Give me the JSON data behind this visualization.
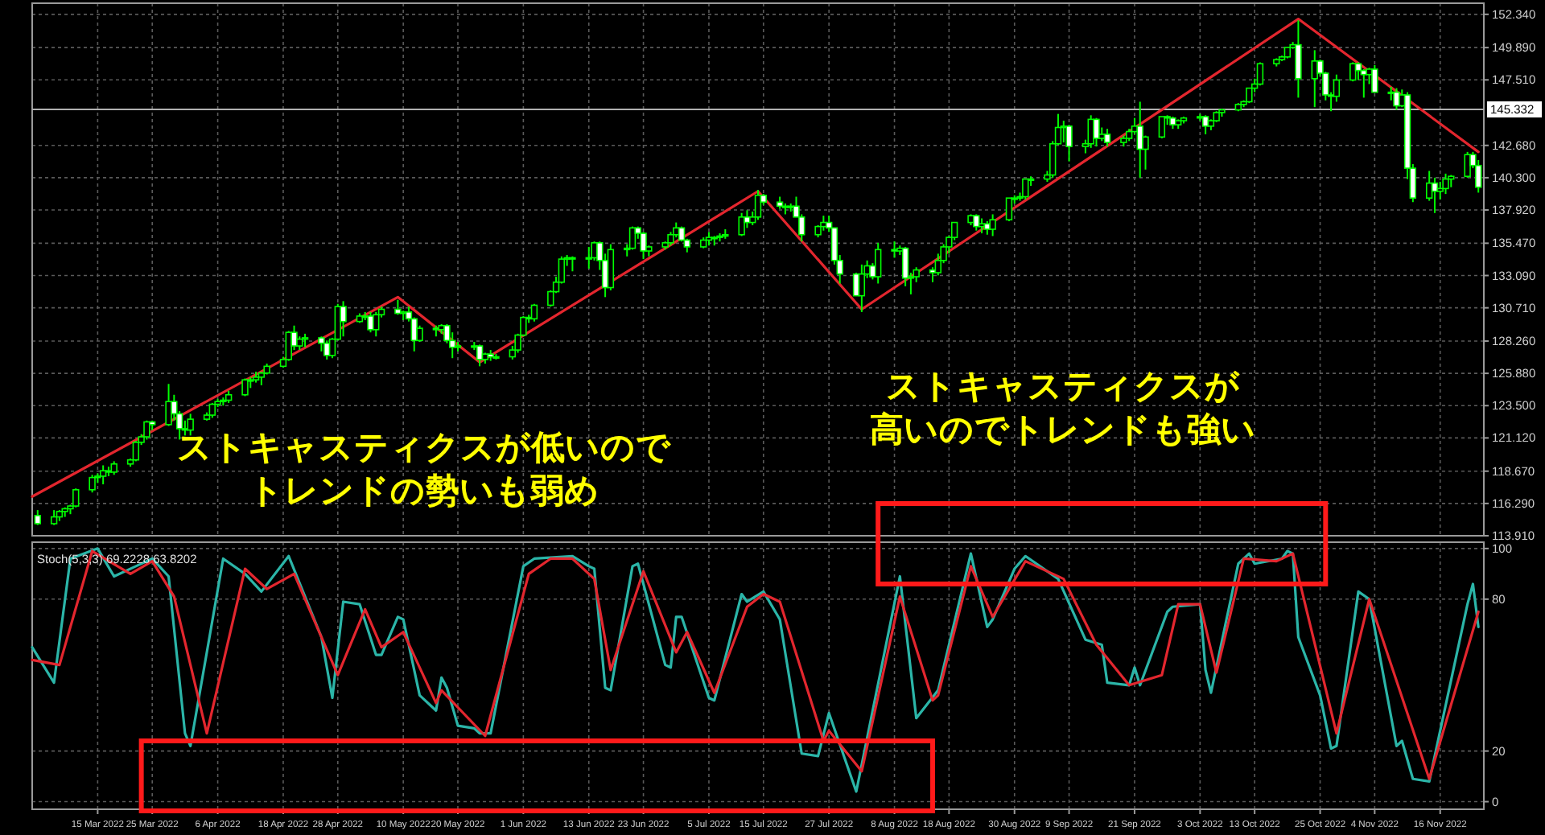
{
  "chart_data": [
    {
      "type": "candlestick",
      "color": "#00ff00",
      "grid": true,
      "tick_labels": "y",
      "xlim": [
        "2022-03-03",
        "2022-11-24"
      ],
      "ylim": [
        113.91,
        153.16
      ],
      "yticks": [
        {
          "value": 113.91,
          "label": "113.910"
        },
        {
          "value": 116.29,
          "label": "116.290"
        },
        {
          "value": 118.67,
          "label": "118.670"
        },
        {
          "value": 121.12,
          "label": "121.120"
        },
        {
          "value": 123.5,
          "label": "123.500"
        },
        {
          "value": 125.88,
          "label": "125.880"
        },
        {
          "value": 128.26,
          "label": "128.260"
        },
        {
          "value": 130.71,
          "label": "130.710"
        },
        {
          "value": 133.09,
          "label": "133.090"
        },
        {
          "value": 135.47,
          "label": "135.470"
        },
        {
          "value": 137.92,
          "label": "137.920"
        },
        {
          "value": 140.3,
          "label": "140.300"
        },
        {
          "value": 142.68,
          "label": "142.680"
        },
        {
          "value": 147.51,
          "label": "147.510"
        },
        {
          "value": 149.89,
          "label": "149.890"
        },
        {
          "value": 152.34,
          "label": "152.340"
        }
      ],
      "ref_lines": [
        {
          "axis": "y",
          "value": 145.332,
          "label": "145.332",
          "color": "#b0b0b0"
        }
      ],
      "annotations": [
        "ストキャスティクスが低いのでトレンドの勢いも弱め",
        "ストキャスティクスが高いのでトレンドも強い"
      ],
      "x": [
        "2022-03-04",
        "2022-03-07",
        "2022-03-08",
        "2022-03-09",
        "2022-03-10",
        "2022-03-11",
        "2022-03-14",
        "2022-03-15",
        "2022-03-16",
        "2022-03-17",
        "2022-03-18",
        "2022-03-21",
        "2022-03-22",
        "2022-03-23",
        "2022-03-24",
        "2022-03-25",
        "2022-03-28",
        "2022-03-29",
        "2022-03-30",
        "2022-03-31",
        "2022-04-01",
        "2022-04-04",
        "2022-04-05",
        "2022-04-06",
        "2022-04-07",
        "2022-04-08",
        "2022-04-11",
        "2022-04-12",
        "2022-04-13",
        "2022-04-14",
        "2022-04-15",
        "2022-04-18",
        "2022-04-19",
        "2022-04-20",
        "2022-04-21",
        "2022-04-22",
        "2022-04-25",
        "2022-04-26",
        "2022-04-27",
        "2022-04-28",
        "2022-04-29",
        "2022-05-02",
        "2022-05-03",
        "2022-05-04",
        "2022-05-05",
        "2022-05-06",
        "2022-05-09",
        "2022-05-10",
        "2022-05-11",
        "2022-05-12",
        "2022-05-13",
        "2022-05-16",
        "2022-05-17",
        "2022-05-18",
        "2022-05-19",
        "2022-05-20",
        "2022-05-23",
        "2022-05-24",
        "2022-05-25",
        "2022-05-26",
        "2022-05-27",
        "2022-05-30",
        "2022-05-31",
        "2022-06-01",
        "2022-06-02",
        "2022-06-03",
        "2022-06-06",
        "2022-06-07",
        "2022-06-08",
        "2022-06-09",
        "2022-06-10",
        "2022-06-13",
        "2022-06-14",
        "2022-06-15",
        "2022-06-16",
        "2022-06-17",
        "2022-06-20",
        "2022-06-21",
        "2022-06-22",
        "2022-06-23",
        "2022-06-24",
        "2022-06-27",
        "2022-06-28",
        "2022-06-29",
        "2022-06-30",
        "2022-07-01",
        "2022-07-04",
        "2022-07-05",
        "2022-07-06",
        "2022-07-07",
        "2022-07-08",
        "2022-07-11",
        "2022-07-12",
        "2022-07-13",
        "2022-07-14",
        "2022-07-15",
        "2022-07-18",
        "2022-07-19",
        "2022-07-20",
        "2022-07-21",
        "2022-07-22",
        "2022-07-25",
        "2022-07-26",
        "2022-07-27",
        "2022-07-28",
        "2022-07-29",
        "2022-08-01",
        "2022-08-02",
        "2022-08-03",
        "2022-08-04",
        "2022-08-05",
        "2022-08-08",
        "2022-08-09",
        "2022-08-10",
        "2022-08-11",
        "2022-08-12",
        "2022-08-15",
        "2022-08-16",
        "2022-08-17",
        "2022-08-18",
        "2022-08-19",
        "2022-08-22",
        "2022-08-23",
        "2022-08-24",
        "2022-08-25",
        "2022-08-26",
        "2022-08-29",
        "2022-08-30",
        "2022-08-31",
        "2022-09-01",
        "2022-09-02",
        "2022-09-05",
        "2022-09-06",
        "2022-09-07",
        "2022-09-08",
        "2022-09-09",
        "2022-09-12",
        "2022-09-13",
        "2022-09-14",
        "2022-09-15",
        "2022-09-16",
        "2022-09-19",
        "2022-09-20",
        "2022-09-21",
        "2022-09-22",
        "2022-09-23",
        "2022-09-26",
        "2022-09-27",
        "2022-09-28",
        "2022-09-29",
        "2022-09-30",
        "2022-10-03",
        "2022-10-04",
        "2022-10-05",
        "2022-10-06",
        "2022-10-07",
        "2022-10-10",
        "2022-10-11",
        "2022-10-12",
        "2022-10-13",
        "2022-10-14",
        "2022-10-17",
        "2022-10-18",
        "2022-10-19",
        "2022-10-20",
        "2022-10-21",
        "2022-10-24",
        "2022-10-25",
        "2022-10-26",
        "2022-10-27",
        "2022-10-28",
        "2022-10-31",
        "2022-11-01",
        "2022-11-02",
        "2022-11-03",
        "2022-11-04",
        "2022-11-07",
        "2022-11-08",
        "2022-11-09",
        "2022-11-10",
        "2022-11-11",
        "2022-11-14",
        "2022-11-15",
        "2022-11-16",
        "2022-11-17",
        "2022-11-18",
        "2022-11-21",
        "2022-11-22",
        "2022-11-23"
      ],
      "ohlc": [
        [
          115.4,
          115.8,
          114.7,
          114.8
        ],
        [
          114.8,
          115.8,
          114.7,
          115.3
        ],
        [
          115.3,
          115.8,
          115.0,
          115.7
        ],
        [
          115.7,
          116.0,
          115.3,
          115.9
        ],
        [
          115.9,
          116.2,
          115.5,
          116.1
        ],
        [
          116.1,
          117.4,
          116.0,
          117.3
        ],
        [
          117.3,
          118.4,
          117.1,
          118.2
        ],
        [
          118.2,
          118.5,
          117.8,
          118.3
        ],
        [
          118.3,
          119.1,
          117.7,
          118.7
        ],
        [
          118.7,
          119.0,
          118.3,
          118.6
        ],
        [
          118.6,
          119.4,
          118.4,
          119.2
        ],
        [
          119.2,
          119.6,
          119.0,
          119.5
        ],
        [
          119.5,
          120.9,
          119.4,
          120.8
        ],
        [
          120.8,
          121.4,
          120.6,
          121.2
        ],
        [
          121.2,
          122.4,
          121.0,
          122.3
        ],
        [
          122.3,
          122.4,
          121.7,
          122.1
        ],
        [
          122.1,
          125.1,
          122.0,
          123.8
        ],
        [
          123.8,
          124.3,
          122.4,
          122.9
        ],
        [
          122.9,
          123.1,
          121.0,
          121.8
        ],
        [
          121.8,
          122.4,
          121.3,
          121.7
        ],
        [
          121.7,
          122.9,
          121.3,
          122.5
        ],
        [
          122.5,
          123.0,
          122.4,
          122.8
        ],
        [
          122.8,
          123.7,
          122.6,
          123.6
        ],
        [
          123.6,
          124.0,
          123.4,
          123.8
        ],
        [
          123.8,
          124.1,
          123.5,
          123.9
        ],
        [
          123.9,
          124.6,
          123.7,
          124.3
        ],
        [
          124.3,
          125.5,
          124.2,
          125.4
        ],
        [
          125.4,
          125.6,
          124.8,
          125.4
        ],
        [
          125.4,
          126.0,
          125.2,
          125.6
        ],
        [
          125.6,
          126.0,
          125.0,
          125.9
        ],
        [
          125.9,
          126.6,
          125.8,
          126.4
        ],
        [
          126.4,
          127.1,
          126.3,
          126.9
        ],
        [
          126.9,
          129.0,
          126.8,
          128.9
        ],
        [
          128.9,
          129.4,
          127.6,
          127.9
        ],
        [
          127.9,
          128.6,
          127.6,
          128.4
        ],
        [
          128.4,
          128.8,
          127.8,
          128.5
        ],
        [
          128.5,
          128.6,
          127.5,
          128.1
        ],
        [
          128.1,
          128.3,
          126.9,
          127.2
        ],
        [
          127.2,
          128.5,
          127.0,
          128.4
        ],
        [
          128.4,
          131.0,
          128.3,
          130.8
        ],
        [
          130.8,
          131.2,
          128.6,
          129.7
        ],
        [
          129.7,
          130.3,
          129.6,
          130.1
        ],
        [
          130.1,
          130.4,
          129.8,
          130.1
        ],
        [
          130.1,
          130.4,
          128.9,
          129.1
        ],
        [
          129.1,
          130.4,
          128.6,
          130.2
        ],
        [
          130.2,
          130.8,
          130.0,
          130.6
        ],
        [
          130.6,
          131.3,
          130.2,
          130.3
        ],
        [
          130.3,
          130.5,
          129.8,
          130.4
        ],
        [
          130.4,
          130.8,
          129.7,
          129.9
        ],
        [
          129.9,
          130.0,
          127.5,
          128.3
        ],
        [
          128.3,
          129.4,
          128.2,
          129.2
        ],
        [
          129.2,
          129.4,
          128.6,
          129.1
        ],
        [
          129.1,
          129.5,
          128.8,
          129.4
        ],
        [
          129.4,
          129.5,
          128.1,
          128.3
        ],
        [
          128.3,
          128.9,
          127.0,
          127.8
        ],
        [
          127.8,
          128.2,
          127.5,
          127.9
        ],
        [
          127.9,
          128.2,
          127.6,
          127.9
        ],
        [
          127.9,
          128.0,
          126.4,
          126.9
        ],
        [
          126.9,
          127.4,
          126.6,
          127.3
        ],
        [
          127.3,
          127.6,
          126.8,
          127.1
        ],
        [
          127.1,
          127.3,
          126.9,
          127.1
        ],
        [
          127.1,
          127.9,
          126.9,
          127.6
        ],
        [
          127.6,
          128.8,
          127.4,
          128.7
        ],
        [
          128.7,
          130.1,
          128.6,
          130.0
        ],
        [
          130.0,
          130.2,
          129.6,
          129.9
        ],
        [
          129.9,
          131.0,
          129.7,
          130.9
        ],
        [
          130.9,
          132.0,
          130.8,
          131.9
        ],
        [
          131.9,
          133.0,
          131.8,
          132.6
        ],
        [
          132.6,
          134.5,
          132.5,
          134.3
        ],
        [
          134.3,
          134.6,
          133.8,
          134.4
        ],
        [
          134.4,
          134.5,
          133.4,
          134.4
        ],
        [
          134.4,
          135.2,
          133.6,
          134.4
        ],
        [
          134.4,
          135.6,
          134.2,
          135.5
        ],
        [
          135.5,
          135.6,
          133.5,
          134.2
        ],
        [
          134.2,
          134.7,
          131.5,
          132.2
        ],
        [
          132.2,
          135.4,
          132.0,
          135.0
        ],
        [
          135.0,
          135.4,
          134.5,
          135.1
        ],
        [
          135.1,
          136.7,
          135.0,
          136.6
        ],
        [
          136.6,
          136.7,
          135.8,
          136.2
        ],
        [
          136.2,
          136.3,
          134.3,
          134.9
        ],
        [
          134.9,
          135.3,
          134.5,
          135.2
        ],
        [
          135.2,
          135.6,
          135.0,
          135.5
        ],
        [
          135.5,
          136.3,
          135.3,
          136.1
        ],
        [
          136.1,
          137.0,
          135.9,
          136.6
        ],
        [
          136.6,
          136.7,
          135.6,
          135.7
        ],
        [
          135.7,
          135.8,
          134.8,
          135.2
        ],
        [
          135.2,
          135.9,
          135.1,
          135.7
        ],
        [
          135.7,
          136.3,
          135.3,
          135.9
        ],
        [
          135.9,
          136.0,
          135.3,
          135.9
        ],
        [
          135.9,
          136.2,
          135.6,
          136.0
        ],
        [
          136.0,
          136.5,
          135.8,
          136.1
        ],
        [
          136.1,
          137.7,
          136.0,
          137.4
        ],
        [
          137.4,
          137.9,
          136.6,
          137.0
        ],
        [
          137.0,
          137.8,
          136.8,
          137.4
        ],
        [
          137.4,
          139.4,
          137.2,
          139.0
        ],
        [
          139.0,
          139.1,
          138.3,
          138.5
        ],
        [
          138.5,
          138.9,
          138.0,
          138.2
        ],
        [
          138.2,
          138.4,
          137.6,
          138.2
        ],
        [
          138.2,
          138.4,
          137.8,
          138.2
        ],
        [
          138.2,
          138.9,
          137.4,
          137.4
        ],
        [
          137.4,
          137.6,
          135.6,
          136.1
        ],
        [
          136.1,
          136.8,
          135.9,
          136.7
        ],
        [
          136.7,
          137.5,
          136.4,
          137.0
        ],
        [
          137.0,
          137.5,
          136.3,
          136.6
        ],
        [
          136.6,
          136.6,
          133.9,
          134.2
        ],
        [
          134.2,
          134.6,
          132.5,
          133.2
        ],
        [
          133.2,
          133.3,
          131.6,
          131.6
        ],
        [
          131.6,
          133.9,
          130.4,
          133.2
        ],
        [
          133.2,
          134.2,
          132.9,
          133.8
        ],
        [
          133.8,
          134.0,
          132.8,
          133.0
        ],
        [
          133.0,
          135.5,
          132.5,
          135.0
        ],
        [
          135.0,
          135.6,
          134.4,
          134.9
        ],
        [
          134.9,
          135.3,
          134.6,
          135.1
        ],
        [
          135.1,
          135.2,
          132.3,
          132.9
        ],
        [
          132.9,
          133.3,
          131.7,
          133.0
        ],
        [
          133.0,
          133.7,
          132.6,
          133.5
        ],
        [
          133.5,
          133.7,
          132.6,
          133.3
        ],
        [
          133.3,
          134.7,
          133.1,
          134.2
        ],
        [
          134.2,
          135.4,
          134.0,
          135.2
        ],
        [
          135.2,
          136.0,
          134.7,
          135.9
        ],
        [
          135.9,
          137.0,
          135.7,
          137.0
        ],
        [
          137.0,
          137.6,
          136.8,
          137.5
        ],
        [
          137.5,
          137.6,
          136.4,
          136.7
        ],
        [
          136.7,
          137.3,
          136.2,
          136.9
        ],
        [
          136.9,
          137.1,
          136.1,
          136.5
        ],
        [
          136.5,
          137.6,
          136.0,
          137.2
        ],
        [
          137.2,
          138.8,
          137.1,
          138.8
        ],
        [
          138.8,
          139.0,
          138.4,
          138.8
        ],
        [
          138.8,
          139.2,
          138.6,
          138.9
        ],
        [
          138.9,
          140.2,
          138.7,
          140.2
        ],
        [
          140.2,
          140.4,
          139.7,
          140.2
        ],
        [
          140.2,
          140.8,
          140.0,
          140.5
        ],
        [
          140.5,
          143.0,
          140.3,
          142.8
        ],
        [
          142.8,
          145.0,
          142.7,
          144.0
        ],
        [
          144.0,
          144.5,
          142.9,
          144.1
        ],
        [
          144.1,
          144.2,
          141.5,
          142.6
        ],
        [
          142.6,
          143.1,
          142.1,
          142.8
        ],
        [
          142.8,
          144.9,
          142.5,
          144.6
        ],
        [
          144.6,
          144.7,
          142.6,
          143.2
        ],
        [
          143.2,
          144.0,
          143.0,
          143.5
        ],
        [
          143.5,
          143.9,
          142.6,
          142.9
        ],
        [
          142.9,
          143.4,
          142.6,
          143.2
        ],
        [
          143.2,
          143.9,
          143.0,
          143.7
        ],
        [
          143.7,
          144.7,
          143.5,
          144.1
        ],
        [
          144.1,
          145.9,
          140.3,
          142.4
        ],
        [
          142.4,
          143.4,
          140.9,
          143.3
        ],
        [
          143.3,
          144.8,
          143.2,
          144.8
        ],
        [
          144.8,
          144.9,
          144.2,
          144.7
        ],
        [
          144.7,
          144.8,
          143.9,
          144.2
        ],
        [
          144.2,
          144.6,
          143.9,
          144.5
        ],
        [
          144.5,
          144.8,
          144.3,
          144.7
        ],
        [
          144.7,
          145.0,
          144.5,
          144.8
        ],
        [
          144.8,
          144.9,
          143.5,
          144.1
        ],
        [
          144.1,
          144.6,
          143.8,
          144.5
        ],
        [
          144.5,
          145.2,
          144.4,
          145.1
        ],
        [
          145.1,
          145.4,
          144.8,
          145.3
        ],
        [
          145.3,
          145.8,
          145.2,
          145.7
        ],
        [
          145.7,
          146.0,
          145.5,
          145.9
        ],
        [
          145.9,
          146.9,
          145.8,
          146.9
        ],
        [
          146.9,
          147.6,
          146.6,
          147.2
        ],
        [
          147.2,
          148.8,
          147.1,
          148.7
        ],
        [
          148.7,
          149.1,
          148.5,
          149.0
        ],
        [
          149.0,
          149.3,
          148.9,
          149.2
        ],
        [
          149.2,
          149.9,
          149.1,
          149.9
        ],
        [
          149.9,
          150.3,
          149.8,
          150.1
        ],
        [
          150.1,
          151.9,
          146.2,
          147.6
        ],
        [
          147.6,
          149.7,
          145.5,
          148.9
        ],
        [
          148.9,
          149.0,
          147.8,
          148.0
        ],
        [
          148.0,
          148.1,
          146.0,
          146.4
        ],
        [
          146.4,
          146.6,
          145.2,
          146.3
        ],
        [
          146.3,
          147.9,
          145.9,
          147.5
        ],
        [
          147.5,
          148.8,
          147.4,
          148.7
        ],
        [
          148.7,
          148.8,
          147.5,
          148.2
        ],
        [
          148.2,
          148.3,
          146.2,
          147.9
        ],
        [
          147.9,
          148.4,
          147.2,
          148.3
        ],
        [
          148.3,
          148.6,
          146.6,
          146.6
        ],
        [
          146.6,
          147.0,
          146.0,
          146.6
        ],
        [
          146.6,
          146.9,
          145.3,
          145.6
        ],
        [
          145.6,
          146.8,
          145.5,
          146.4
        ],
        [
          146.4,
          146.6,
          140.2,
          141.0
        ],
        [
          141.0,
          141.3,
          138.5,
          138.8
        ],
        [
          138.8,
          140.8,
          138.6,
          139.9
        ],
        [
          139.9,
          140.3,
          137.7,
          139.3
        ],
        [
          139.3,
          140.0,
          138.7,
          139.5
        ],
        [
          139.5,
          140.6,
          139.1,
          140.2
        ],
        [
          140.2,
          140.5,
          139.6,
          140.4
        ],
        [
          140.4,
          142.2,
          140.3,
          142.0
        ],
        [
          142.0,
          142.2,
          141.0,
          141.2
        ],
        [
          141.2,
          141.6,
          139.2,
          139.6
        ]
      ],
      "series": [
        {
          "type": "line",
          "color": "#e3262e",
          "x": [
            "2022-03-03",
            "2022-05-09",
            "2022-05-24",
            "2022-07-14",
            "2022-08-02",
            "2022-10-21",
            "2022-11-23"
          ],
          "values": [
            116.8,
            131.5,
            126.7,
            139.3,
            130.6,
            152.0,
            142.2
          ]
        }
      ]
    },
    {
      "type": "line",
      "title": "Stoch(5,3,3) 69.2228 63.8202",
      "grid": true,
      "xlim": [
        "2022-03-03",
        "2022-11-24"
      ],
      "ylim": [
        -3,
        102.5
      ],
      "yticks": [
        0,
        20,
        80,
        100
      ],
      "xticks": [
        {
          "value": "2022-03-15",
          "label": "15 Mar 2022"
        },
        {
          "value": "2022-03-25",
          "label": "25 Mar 2022"
        },
        {
          "value": "2022-04-06",
          "label": "6 Apr 2022"
        },
        {
          "value": "2022-04-18",
          "label": "18 Apr 2022"
        },
        {
          "value": "2022-04-28",
          "label": "28 Apr 2022"
        },
        {
          "value": "2022-05-10",
          "label": "10 May 2022"
        },
        {
          "value": "2022-05-20",
          "label": "20 May 2022"
        },
        {
          "value": "2022-06-01",
          "label": "1 Jun 2022"
        },
        {
          "value": "2022-06-13",
          "label": "13 Jun 2022"
        },
        {
          "value": "2022-06-23",
          "label": "23 Jun 2022"
        },
        {
          "value": "2022-07-05",
          "label": "5 Jul 2022"
        },
        {
          "value": "2022-07-15",
          "label": "15 Jul 2022"
        },
        {
          "value": "2022-07-27",
          "label": "27 Jul 2022"
        },
        {
          "value": "2022-08-08",
          "label": "8 Aug 2022"
        },
        {
          "value": "2022-08-18",
          "label": "18 Aug 2022"
        },
        {
          "value": "2022-08-30",
          "label": "30 Aug 2022"
        },
        {
          "value": "2022-09-09",
          "label": "9 Sep 2022"
        },
        {
          "value": "2022-09-21",
          "label": "21 Sep 2022"
        },
        {
          "value": "2022-10-03",
          "label": "3 Oct 2022"
        },
        {
          "value": "2022-10-13",
          "label": "13 Oct 2022"
        },
        {
          "value": "2022-10-25",
          "label": "25 Oct 2022"
        },
        {
          "value": "2022-11-04",
          "label": "4 Nov 2022"
        },
        {
          "value": "2022-11-16",
          "label": "16 Nov 2022"
        }
      ],
      "series": [
        {
          "color": "#2bb5a8",
          "x": [
            "2022-03-03",
            "2022-03-07",
            "2022-03-10",
            "2022-03-15",
            "2022-03-18",
            "2022-03-22",
            "2022-03-25",
            "2022-03-28",
            "2022-03-31",
            "2022-04-01",
            "2022-04-07",
            "2022-04-11",
            "2022-04-14",
            "2022-04-19",
            "2022-04-25",
            "2022-04-27",
            "2022-04-29",
            "2022-05-02",
            "2022-05-05",
            "2022-05-06",
            "2022-05-09",
            "2022-05-10",
            "2022-05-13",
            "2022-05-16",
            "2022-05-17",
            "2022-05-18",
            "2022-05-20",
            "2022-05-23",
            "2022-05-24",
            "2022-05-26",
            "2022-06-01",
            "2022-06-03",
            "2022-06-10",
            "2022-06-13",
            "2022-06-14",
            "2022-06-16",
            "2022-06-17",
            "2022-06-21",
            "2022-06-22",
            "2022-06-27",
            "2022-06-28",
            "2022-06-29",
            "2022-06-30",
            "2022-07-05",
            "2022-07-06",
            "2022-07-11",
            "2022-07-12",
            "2022-07-15",
            "2022-07-18",
            "2022-07-22",
            "2022-07-25",
            "2022-07-27",
            "2022-08-01",
            "2022-08-09",
            "2022-08-12",
            "2022-08-16",
            "2022-08-22",
            "2022-08-25",
            "2022-08-26",
            "2022-08-30",
            "2022-09-01",
            "2022-09-07",
            "2022-09-12",
            "2022-09-15",
            "2022-09-16",
            "2022-09-20",
            "2022-09-21",
            "2022-09-22",
            "2022-09-27",
            "2022-09-28",
            "2022-10-03",
            "2022-10-04",
            "2022-10-05",
            "2022-10-10",
            "2022-10-12",
            "2022-10-13",
            "2022-10-18",
            "2022-10-19",
            "2022-10-20",
            "2022-10-21",
            "2022-10-25",
            "2022-10-27",
            "2022-10-28",
            "2022-11-01",
            "2022-11-03",
            "2022-11-08",
            "2022-11-09",
            "2022-11-11",
            "2022-11-14",
            "2022-11-21",
            "2022-11-22",
            "2022-11-23"
          ],
          "values": [
            61,
            47,
            96,
            100,
            89,
            93,
            96,
            89,
            27,
            22,
            96,
            90,
            83,
            97,
            65,
            41,
            79,
            78,
            58,
            58,
            73,
            72,
            42,
            36,
            49,
            45,
            30,
            29,
            27,
            27,
            93,
            96,
            97,
            93,
            92,
            45,
            44,
            93,
            94,
            54,
            53,
            73,
            73,
            41,
            40,
            82,
            79,
            83,
            72,
            19,
            18,
            35,
            4,
            89,
            33,
            44,
            98,
            69,
            72,
            92,
            97,
            88,
            64,
            62,
            47,
            46,
            53,
            46,
            75,
            77,
            78,
            52,
            43,
            94,
            98,
            94,
            96,
            99,
            98,
            65,
            42,
            21,
            22,
            83,
            80,
            22,
            24,
            9,
            8,
            78,
            86,
            69
          ]
        },
        {
          "color": "#e3262e",
          "x": [
            "2022-03-03",
            "2022-03-08",
            "2022-03-14",
            "2022-03-21",
            "2022-03-25",
            "2022-03-29",
            "2022-04-04",
            "2022-04-11",
            "2022-04-15",
            "2022-04-20",
            "2022-04-28",
            "2022-05-03",
            "2022-05-06",
            "2022-05-10",
            "2022-05-16",
            "2022-05-17",
            "2022-05-25",
            "2022-06-02",
            "2022-06-06",
            "2022-06-10",
            "2022-06-14",
            "2022-06-17",
            "2022-06-23",
            "2022-06-29",
            "2022-07-01",
            "2022-07-06",
            "2022-07-12",
            "2022-07-15",
            "2022-07-18",
            "2022-07-26",
            "2022-07-27",
            "2022-08-02",
            "2022-08-09",
            "2022-08-15",
            "2022-08-16",
            "2022-08-22",
            "2022-08-26",
            "2022-09-01",
            "2022-09-08",
            "2022-09-14",
            "2022-09-20",
            "2022-09-26",
            "2022-09-29",
            "2022-10-03",
            "2022-10-06",
            "2022-10-11",
            "2022-10-17",
            "2022-10-20",
            "2022-10-28",
            "2022-11-03",
            "2022-11-14",
            "2022-11-23"
          ],
          "values": [
            56,
            54,
            99,
            90,
            95,
            81,
            27,
            92,
            84,
            90,
            50,
            76,
            61,
            67,
            39,
            44,
            26,
            90,
            96,
            96,
            88,
            52,
            91,
            59,
            67,
            43,
            77,
            82,
            79,
            24,
            28,
            12,
            81,
            40,
            42,
            93,
            73,
            95,
            88,
            62,
            46,
            50,
            78,
            78,
            51,
            96,
            95,
            98,
            27,
            80,
            9,
            75
          ]
        }
      ]
    }
  ]
}
